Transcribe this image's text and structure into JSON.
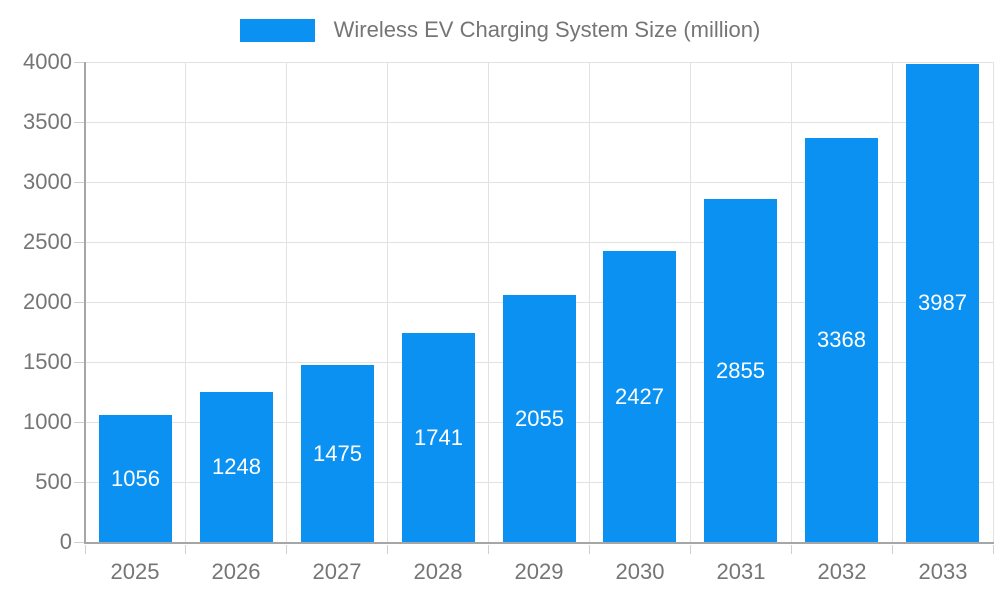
{
  "legend": {
    "label": "Wireless EV Charging System Size (million)"
  },
  "colors": {
    "bar": "#0a91f2",
    "axis_text": "#757575",
    "grid_line": "#e2e2e2",
    "axis_line": "#a6a6a6",
    "tick_line": "#cfcfcf",
    "bar_label": "#ffffff",
    "background": "#ffffff"
  },
  "chart_data": {
    "type": "bar",
    "title": "Wireless EV Charging System Size (million)",
    "categories": [
      "2025",
      "2026",
      "2027",
      "2028",
      "2029",
      "2030",
      "2031",
      "2032",
      "2033"
    ],
    "values": [
      1056,
      1248,
      1475,
      1741,
      2055,
      2427,
      2855,
      3368,
      3987
    ],
    "xlabel": "",
    "ylabel": "",
    "ylim": [
      0,
      4000
    ],
    "yticks": [
      0,
      500,
      1000,
      1500,
      2000,
      2500,
      3000,
      3500,
      4000
    ],
    "grid": true,
    "legend_position": "top",
    "value_labels": "inside-center"
  }
}
